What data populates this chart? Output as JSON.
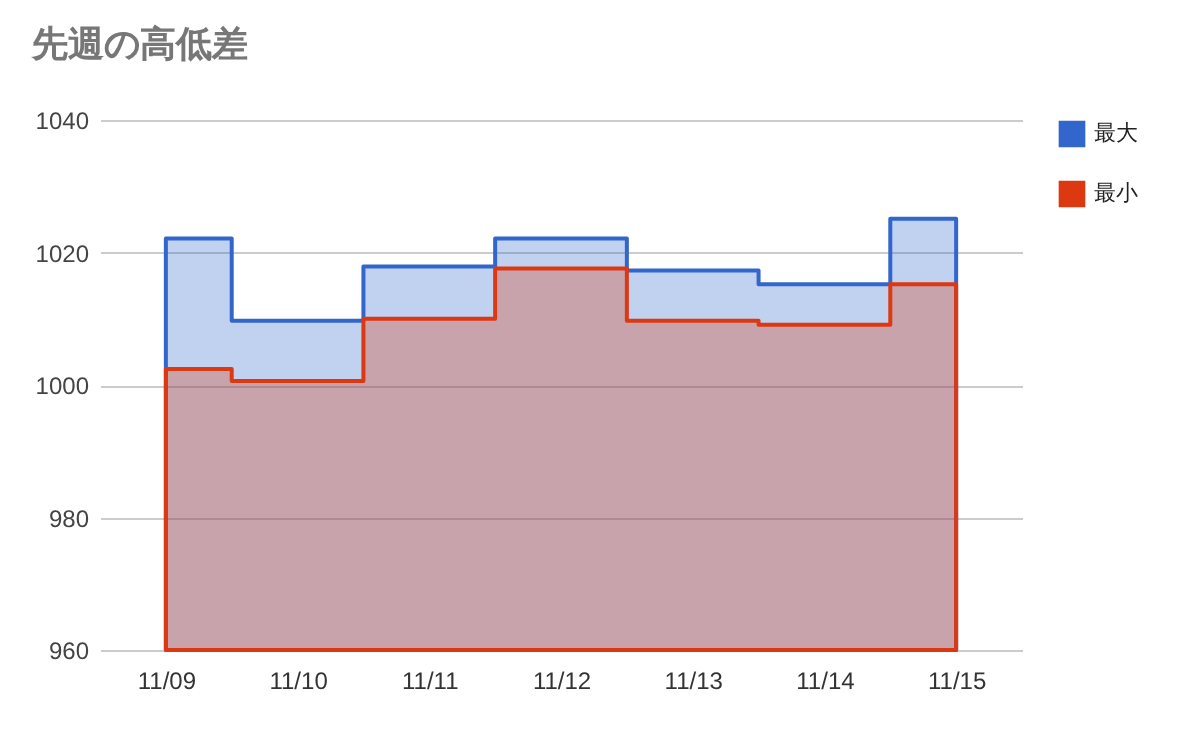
{
  "chart_data": {
    "type": "area",
    "title": "先週の高低差",
    "categories": [
      "11/09",
      "11/10",
      "11/11",
      "11/12",
      "11/13",
      "11/14",
      "11/15"
    ],
    "series": [
      {
        "name": "最大",
        "color": "#3366cc",
        "values": [
          1022.1,
          1009.7,
          1017.9,
          1022.1,
          1017.3,
          1015.2,
          1025.1
        ]
      },
      {
        "name": "最小",
        "color": "#dc3912",
        "values": [
          1002.4,
          1000.6,
          1010,
          1017.6,
          1009.7,
          1009.1,
          1015.2
        ]
      }
    ],
    "ylim": [
      960,
      1040
    ],
    "yticks": [
      960,
      980,
      1000,
      1020,
      1040
    ],
    "grid": "y",
    "legend": "top right"
  }
}
